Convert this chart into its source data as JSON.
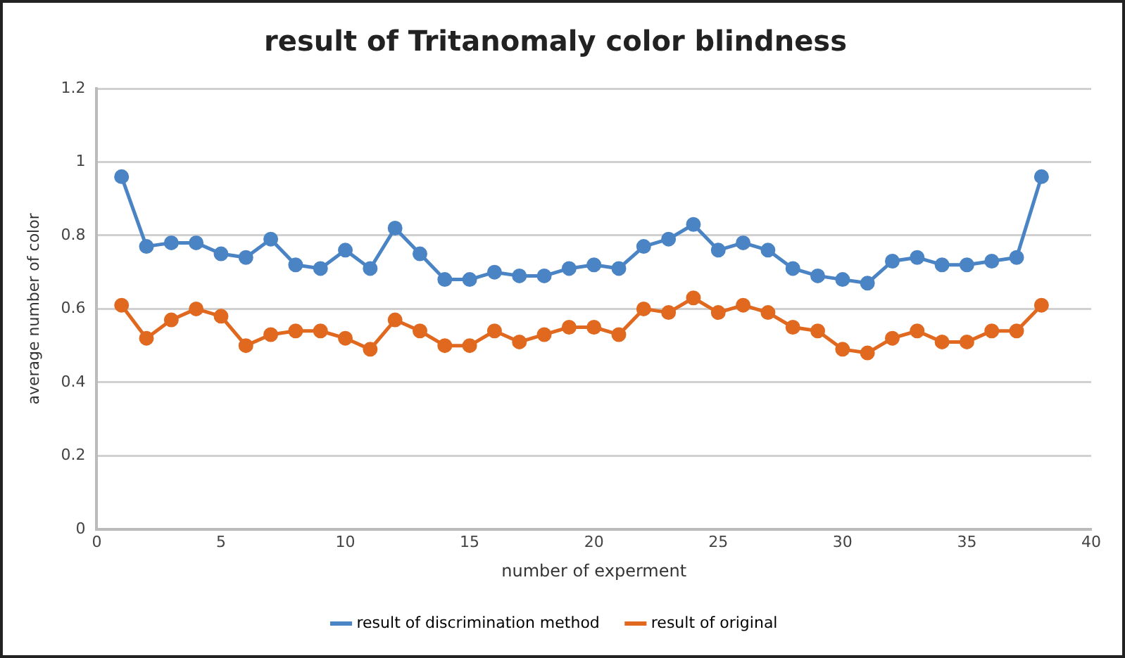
{
  "chart_data": {
    "type": "line",
    "title": "result of Tritanomaly color blindness",
    "xlabel": "number of experment",
    "ylabel": "average number of color",
    "x": [
      1,
      2,
      3,
      4,
      5,
      6,
      7,
      8,
      9,
      10,
      11,
      12,
      13,
      14,
      15,
      16,
      17,
      18,
      19,
      20,
      21,
      22,
      23,
      24,
      25,
      26,
      27,
      28,
      29,
      30,
      31,
      32,
      33,
      34,
      35,
      36,
      37,
      38
    ],
    "series": [
      {
        "name": "result of discrimination method",
        "color": "#4a84c4",
        "values": [
          0.96,
          0.77,
          0.78,
          0.78,
          0.75,
          0.74,
          0.79,
          0.72,
          0.71,
          0.76,
          0.71,
          0.82,
          0.75,
          0.68,
          0.68,
          0.7,
          0.69,
          0.69,
          0.71,
          0.72,
          0.71,
          0.77,
          0.79,
          0.83,
          0.76,
          0.78,
          0.76,
          0.71,
          0.69,
          0.68,
          0.67,
          0.73,
          0.74,
          0.72,
          0.72,
          0.73,
          0.74,
          0.96
        ]
      },
      {
        "name": "result of original",
        "color": "#e0681f",
        "values": [
          0.61,
          0.52,
          0.57,
          0.6,
          0.58,
          0.5,
          0.53,
          0.54,
          0.54,
          0.52,
          0.49,
          0.57,
          0.54,
          0.5,
          0.5,
          0.54,
          0.51,
          0.53,
          0.55,
          0.55,
          0.53,
          0.6,
          0.59,
          0.63,
          0.59,
          0.61,
          0.59,
          0.55,
          0.54,
          0.49,
          0.48,
          0.52,
          0.54,
          0.51,
          0.51,
          0.54,
          0.54,
          0.61
        ]
      }
    ],
    "xlim": [
      0,
      40
    ],
    "xticks": [
      0,
      5,
      10,
      15,
      20,
      25,
      30,
      35,
      40
    ],
    "ylim": [
      0,
      1.2
    ],
    "yticks": [
      0,
      0.2,
      0.4,
      0.6,
      0.8,
      1,
      1.2
    ],
    "grid": "y",
    "legend": "bottom",
    "marker": "circle",
    "line_style": "solid"
  }
}
